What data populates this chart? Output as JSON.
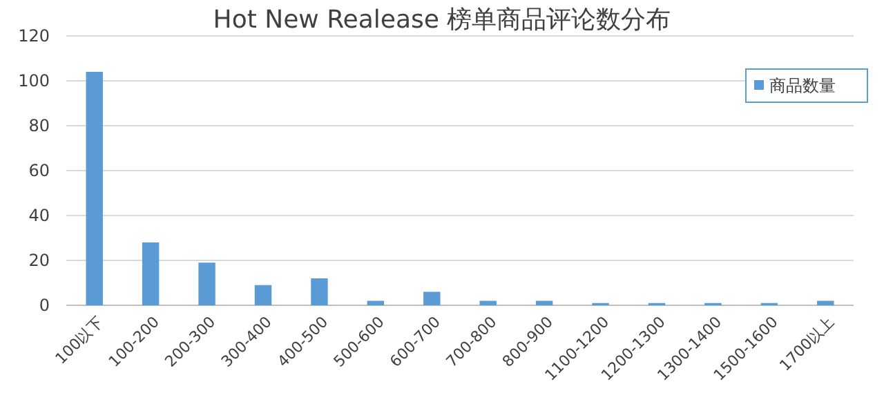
{
  "chart_data": {
    "type": "bar",
    "title": "Hot New Realease 榜单商品评论数分布",
    "categories": [
      "100以下",
      "100-200",
      "200-300",
      "300-400",
      "400-500",
      "500-600",
      "600-700",
      "700-800",
      "800-900",
      "1100-1200",
      "1200-1300",
      "1300-1400",
      "1500-1600",
      "1700以上"
    ],
    "series": [
      {
        "name": "商品数量",
        "color": "#5b9bd5",
        "values": [
          104,
          28,
          19,
          9,
          12,
          2,
          6,
          2,
          2,
          1,
          1,
          1,
          1,
          2
        ]
      }
    ],
    "ylim": [
      0,
      120
    ],
    "yticks": [
      0,
      20,
      40,
      60,
      80,
      100,
      120
    ],
    "grid": "y",
    "legend": "top right"
  }
}
